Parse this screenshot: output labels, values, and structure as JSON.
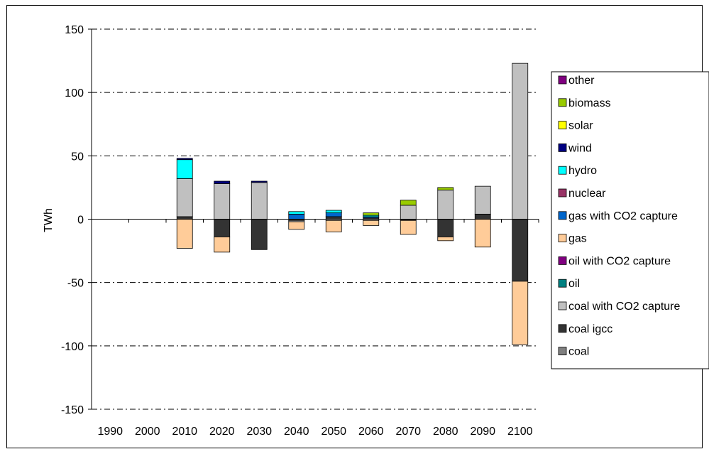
{
  "chart_data": {
    "type": "bar",
    "stacked": true,
    "title": "",
    "xlabel": "",
    "ylabel": "TWh",
    "ylim": [
      -150,
      150
    ],
    "yticks": [
      150,
      100,
      50,
      0,
      -50,
      -100,
      -150
    ],
    "grid": "horizontal dashed",
    "legend_position": "right",
    "categories": [
      "1990",
      "2000",
      "2010",
      "2020",
      "2030",
      "2040",
      "2050",
      "2060",
      "2070",
      "2080",
      "2090",
      "2100"
    ],
    "series": [
      {
        "name": "coal",
        "color": "#808080",
        "values": [
          0,
          0,
          0,
          0,
          0,
          0,
          0,
          0,
          0,
          0,
          0,
          0
        ]
      },
      {
        "name": "coal igcc",
        "color": "#333333",
        "values": [
          0,
          0,
          2,
          -14,
          -24,
          -1,
          2,
          1,
          -1,
          -14,
          4,
          -49
        ]
      },
      {
        "name": "coal with CO2 capture",
        "color": "#c0c0c0",
        "values": [
          0,
          0,
          30,
          28,
          29,
          -1,
          -1,
          -1,
          11,
          23,
          22,
          123
        ]
      },
      {
        "name": "oil",
        "color": "#008080",
        "values": [
          0,
          0,
          0,
          0,
          0,
          0,
          0,
          0,
          0,
          0,
          0,
          0
        ]
      },
      {
        "name": "oil with CO2 capture",
        "color": "#800080",
        "values": [
          0,
          0,
          0,
          0,
          0,
          0,
          0,
          0,
          0,
          0,
          0,
          0
        ]
      },
      {
        "name": "gas",
        "color": "#ffcc99",
        "values": [
          0,
          0,
          -23,
          -12,
          0,
          -6,
          -9,
          -4,
          -11,
          -3,
          -22,
          -50
        ]
      },
      {
        "name": "gas with CO2 capture",
        "color": "#0066cc",
        "values": [
          0,
          0,
          0,
          0,
          0,
          4,
          3,
          1,
          0,
          0,
          0,
          0
        ]
      },
      {
        "name": "nuclear",
        "color": "#993366",
        "values": [
          0,
          0,
          0,
          0,
          0,
          0,
          0,
          0,
          0,
          0,
          0,
          0
        ]
      },
      {
        "name": "hydro",
        "color": "#00ffff",
        "values": [
          0,
          0,
          15,
          0,
          0,
          2,
          2,
          1,
          0,
          0,
          0,
          0
        ]
      },
      {
        "name": "wind",
        "color": "#000080",
        "values": [
          0,
          0,
          1,
          2,
          1,
          0,
          0,
          0,
          0,
          0,
          0,
          0
        ]
      },
      {
        "name": "solar",
        "color": "#ffff00",
        "values": [
          0,
          0,
          0,
          0,
          0,
          0,
          0,
          0,
          0,
          0,
          0,
          0
        ]
      },
      {
        "name": "biomass",
        "color": "#99cc00",
        "values": [
          0,
          0,
          0,
          0,
          0,
          0,
          0,
          2,
          4,
          2,
          0,
          0
        ]
      },
      {
        "name": "other",
        "color": "#800080",
        "values": [
          0,
          0,
          0,
          0,
          0,
          0,
          0,
          0,
          0,
          0,
          0,
          0
        ]
      }
    ]
  }
}
